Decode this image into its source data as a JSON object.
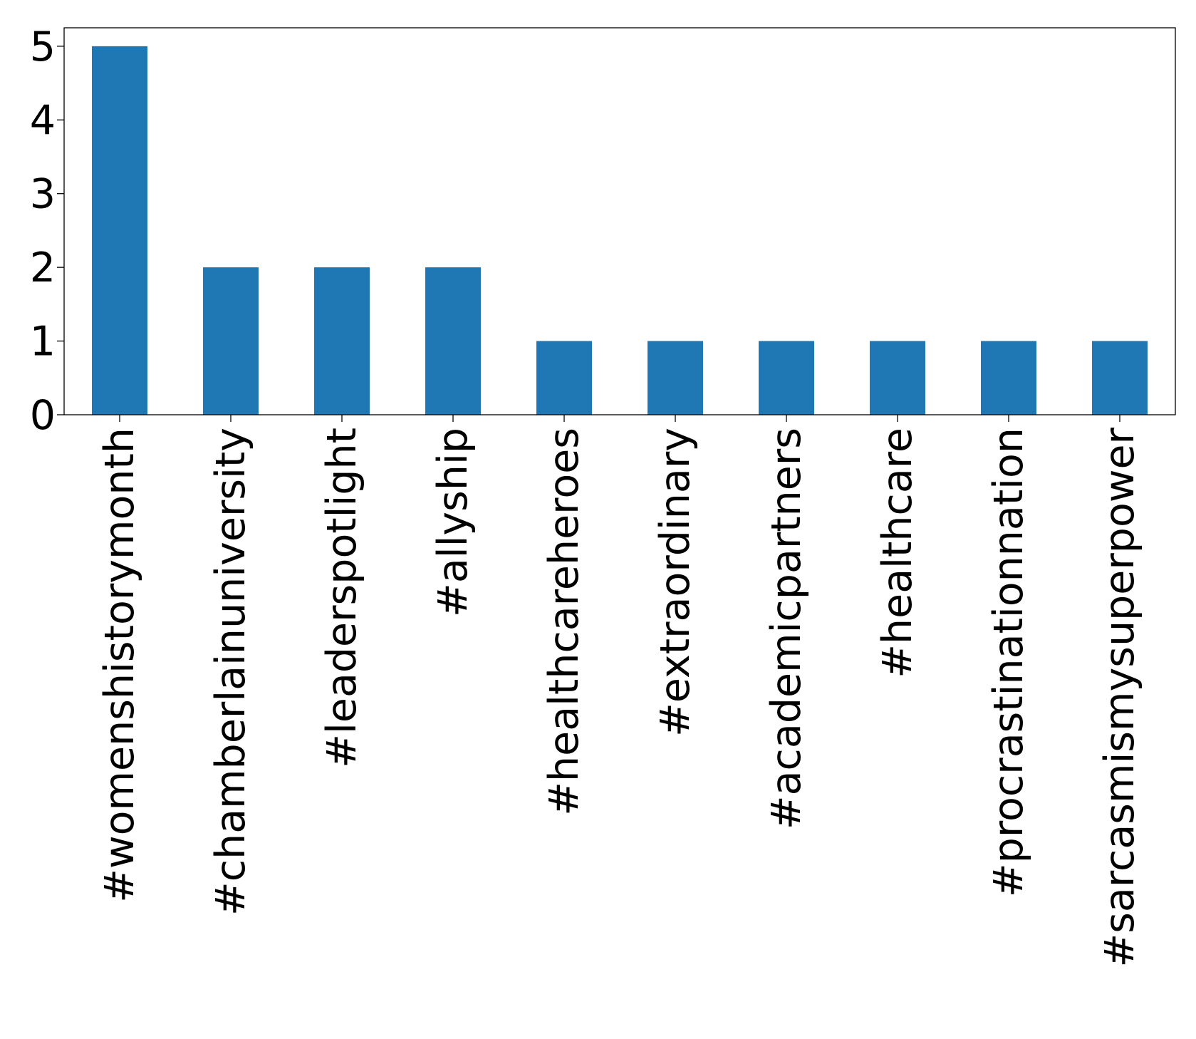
{
  "chart_data": {
    "type": "bar",
    "title": "",
    "xlabel": "",
    "ylabel": "",
    "categories": [
      "#womenshistorymonth",
      "#chamberlainuniversity",
      "#leaderspotlight",
      "#allyship",
      "#healthcareheroes",
      "#extraordinary",
      "#academicpartners",
      "#healthcare",
      "#procrastinationnation",
      "#sarcasmismysuperpower"
    ],
    "values": [
      5,
      2,
      2,
      2,
      1,
      1,
      1,
      1,
      1,
      1
    ],
    "ylim": [
      0,
      5.25
    ],
    "yticks": [
      "0",
      "1",
      "2",
      "3",
      "4",
      "5"
    ],
    "bar_color": "#1f77b4",
    "grid": false,
    "legend": "none"
  }
}
